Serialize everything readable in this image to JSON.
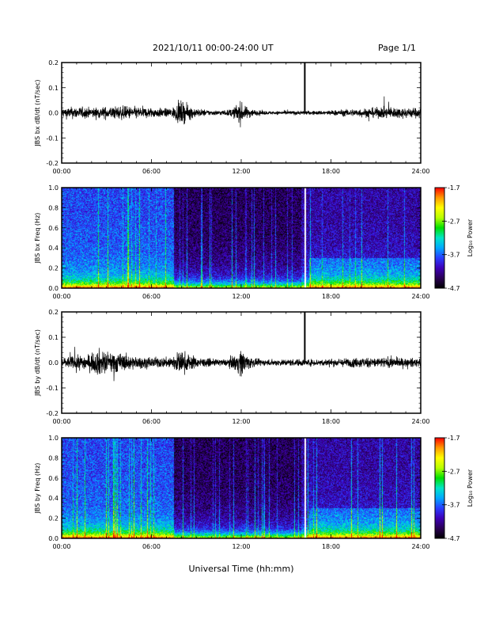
{
  "header": {
    "date_range": "2021/10/11  00:00-24:00 UT",
    "page": "Page 1/1"
  },
  "colors": {
    "trace": "#000000",
    "gap_line": "#ffffff",
    "colorbar_stops": [
      "#000000",
      "#2a0055",
      "#3d00b8",
      "#2a3cff",
      "#00a8ff",
      "#00e6c8",
      "#00e000",
      "#b8ff00",
      "#ffff00",
      "#ff9a00",
      "#ff0000"
    ]
  },
  "chart_data": [
    {
      "type": "line",
      "panel": "bx-timeseries",
      "ylabel": "JBS bx dB/dt (nT/sec)",
      "xlabel": "",
      "xlim": [
        0,
        24
      ],
      "ylim": [
        -0.2,
        0.2
      ],
      "x_ticks": [
        "00:00",
        "06:00",
        "12:00",
        "18:00",
        "24:00"
      ],
      "y_ticks": [
        "-0.2",
        "-0.1",
        "0.0",
        "0.1",
        "0.2"
      ],
      "spike": {
        "time": 16.25,
        "peak": 0.2
      },
      "envelope": {
        "x": [
          0,
          1,
          2,
          3,
          4,
          5,
          6,
          7,
          7.5,
          8,
          8.3,
          9,
          10,
          11,
          11.5,
          11.9,
          12.2,
          13,
          14,
          15,
          16,
          17,
          18,
          19,
          20,
          21,
          22,
          23,
          24
        ],
        "amplitude": [
          0.03,
          0.035,
          0.03,
          0.035,
          0.04,
          0.035,
          0.03,
          0.025,
          0.035,
          0.07,
          0.05,
          0.025,
          0.015,
          0.015,
          0.03,
          0.07,
          0.04,
          0.015,
          0.01,
          0.012,
          0.012,
          0.012,
          0.015,
          0.02,
          0.025,
          0.03,
          0.035,
          0.03,
          0.03
        ]
      }
    },
    {
      "type": "heatmap",
      "panel": "bx-spectrogram",
      "ylabel": "JBS bx Freq (Hz)",
      "colorbar_label": "Log₁₀ Power",
      "colorbar_ticks": [
        "-1.7",
        "-2.7",
        "-3.7",
        "-4.7"
      ],
      "colorbar_range": [
        -4.7,
        -1.7
      ],
      "xlim": [
        0,
        24
      ],
      "ylim": [
        0,
        1.0
      ],
      "x_ticks": [
        "00:00",
        "06:00",
        "12:00",
        "18:00",
        "24:00"
      ],
      "y_ticks": [
        "0.0",
        "0.2",
        "0.4",
        "0.6",
        "0.8",
        "1.0"
      ],
      "gap_time": 16.25,
      "dark_band_start": 7.5
    },
    {
      "type": "line",
      "panel": "by-timeseries",
      "ylabel": "JBS by dB/dt (nT/sec)",
      "xlabel": "",
      "xlim": [
        0,
        24
      ],
      "ylim": [
        -0.2,
        0.2
      ],
      "x_ticks": [
        "00:00",
        "06:00",
        "12:00",
        "18:00",
        "24:00"
      ],
      "y_ticks": [
        "-0.2",
        "-0.1",
        "0.0",
        "0.1",
        "0.2"
      ],
      "spike": {
        "time": 16.25,
        "peak": 0.2
      },
      "envelope": {
        "x": [
          0,
          1,
          2,
          2.5,
          3,
          3.5,
          4,
          5,
          6,
          7,
          8,
          8.5,
          9,
          10,
          11,
          11.5,
          12,
          12.5,
          13,
          14,
          15,
          16,
          17,
          18,
          19,
          20,
          21,
          22,
          23,
          24
        ],
        "amplitude": [
          0.03,
          0.04,
          0.05,
          0.08,
          0.06,
          0.07,
          0.05,
          0.035,
          0.03,
          0.03,
          0.07,
          0.05,
          0.03,
          0.02,
          0.02,
          0.04,
          0.08,
          0.04,
          0.02,
          0.018,
          0.02,
          0.02,
          0.02,
          0.022,
          0.025,
          0.03,
          0.03,
          0.03,
          0.025,
          0.025
        ]
      }
    },
    {
      "type": "heatmap",
      "panel": "by-spectrogram",
      "ylabel": "JBS by Freq (Hz)",
      "colorbar_label": "Log₁₀ Power",
      "colorbar_ticks": [
        "-1.7",
        "-2.7",
        "-3.7",
        "-4.7"
      ],
      "colorbar_range": [
        -4.7,
        -1.7
      ],
      "xlim": [
        0,
        24
      ],
      "ylim": [
        0,
        1.0
      ],
      "x_ticks": [
        "00:00",
        "06:00",
        "12:00",
        "18:00",
        "24:00"
      ],
      "y_ticks": [
        "0.0",
        "0.2",
        "0.4",
        "0.6",
        "0.8",
        "1.0"
      ],
      "gap_time": 16.25,
      "dark_band_start": 7.5,
      "xlabel": "Universal Time (hh:mm)"
    }
  ]
}
